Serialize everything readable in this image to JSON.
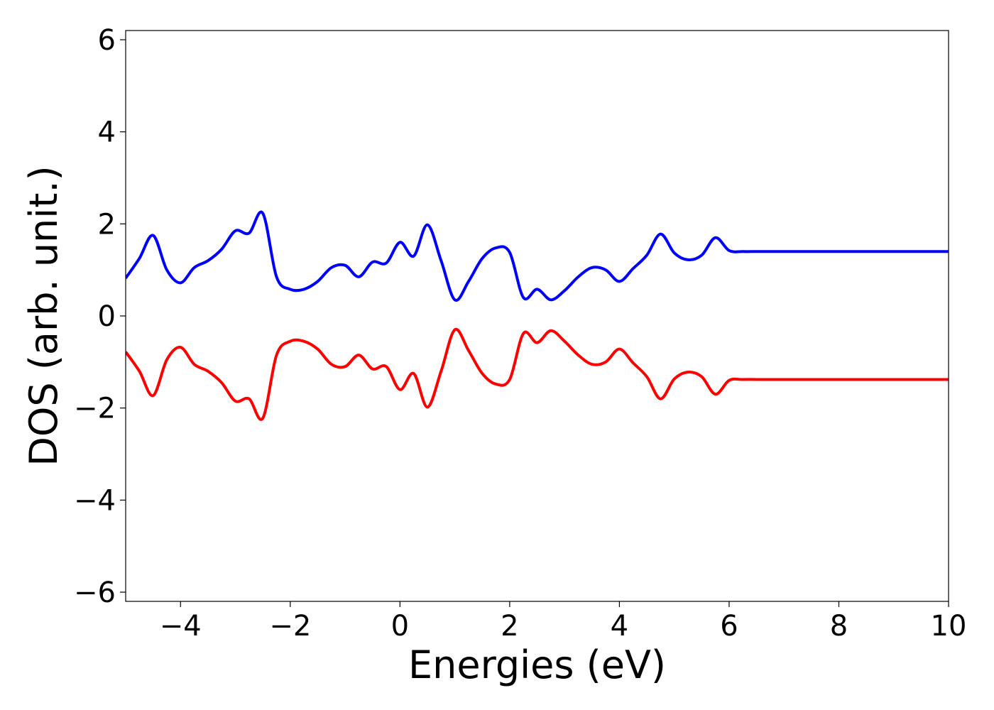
{
  "chart_data": {
    "type": "line",
    "title": "",
    "xlabel": "Energies (eV)",
    "ylabel": "DOS (arb. unit.)",
    "xlim": [
      -5,
      10
    ],
    "ylim": [
      -6.2,
      6.2
    ],
    "x_ticks": [
      -4,
      -2,
      0,
      2,
      4,
      6,
      8,
      10
    ],
    "x_tick_labels": [
      "−4",
      "−2",
      "0",
      "2",
      "4",
      "6",
      "8",
      "10"
    ],
    "y_ticks": [
      -6,
      -4,
      -2,
      0,
      2,
      4,
      6
    ],
    "y_tick_labels": [
      "−6",
      "−4",
      "−2",
      "0",
      "2",
      "4",
      "6"
    ],
    "grid": false,
    "legend": "none",
    "x": [
      -5.0,
      -4.75,
      -4.5,
      -4.25,
      -4.0,
      -3.75,
      -3.5,
      -3.25,
      -3.0,
      -2.75,
      -2.5,
      -2.25,
      -2.0,
      -1.75,
      -1.5,
      -1.25,
      -1.0,
      -0.75,
      -0.5,
      -0.25,
      0.0,
      0.25,
      0.5,
      0.75,
      1.0,
      1.25,
      1.5,
      1.75,
      2.0,
      2.25,
      2.5,
      2.75,
      3.0,
      3.25,
      3.5,
      3.75,
      4.0,
      4.25,
      4.5,
      4.75,
      5.0,
      5.25,
      5.5,
      5.75,
      6.0,
      6.25,
      6.5,
      6.75,
      7.0,
      7.25,
      7.5,
      7.75,
      8.0,
      8.25,
      8.5,
      8.75,
      9.0,
      9.25,
      9.5,
      9.75,
      10.0
    ],
    "series": [
      {
        "color": "#0000ff",
        "values": [
          0.82,
          1.25,
          1.75,
          1.0,
          0.72,
          1.05,
          1.2,
          1.45,
          1.85,
          1.8,
          2.23,
          0.85,
          0.58,
          0.58,
          0.75,
          1.05,
          1.1,
          0.85,
          1.17,
          1.15,
          1.6,
          1.3,
          1.98,
          1.2,
          0.35,
          0.75,
          1.25,
          1.48,
          1.38,
          0.4,
          0.58,
          0.35,
          0.55,
          0.85,
          1.05,
          1.0,
          0.75,
          1.03,
          1.32,
          1.78,
          1.37,
          1.22,
          1.32,
          1.7,
          1.42,
          1.4,
          1.4,
          1.4,
          1.4,
          1.4,
          1.4,
          1.4,
          1.4,
          1.4,
          1.4,
          1.4,
          1.4,
          1.4,
          1.4,
          1.4,
          1.4
        ]
      },
      {
        "color": "#ff0000",
        "values": [
          -0.78,
          -1.2,
          -1.73,
          -0.95,
          -0.68,
          -1.05,
          -1.2,
          -1.45,
          -1.85,
          -1.8,
          -2.22,
          -0.85,
          -0.55,
          -0.55,
          -0.72,
          -1.05,
          -1.1,
          -0.85,
          -1.15,
          -1.1,
          -1.6,
          -1.25,
          -1.98,
          -1.2,
          -0.3,
          -0.75,
          -1.25,
          -1.48,
          -1.38,
          -0.38,
          -0.58,
          -0.32,
          -0.55,
          -0.85,
          -1.05,
          -1.0,
          -0.72,
          -1.02,
          -1.32,
          -1.8,
          -1.37,
          -1.22,
          -1.32,
          -1.7,
          -1.4,
          -1.38,
          -1.38,
          -1.38,
          -1.38,
          -1.38,
          -1.38,
          -1.38,
          -1.38,
          -1.38,
          -1.38,
          -1.38,
          -1.38,
          -1.38,
          -1.38,
          -1.38,
          -1.38
        ]
      }
    ]
  }
}
